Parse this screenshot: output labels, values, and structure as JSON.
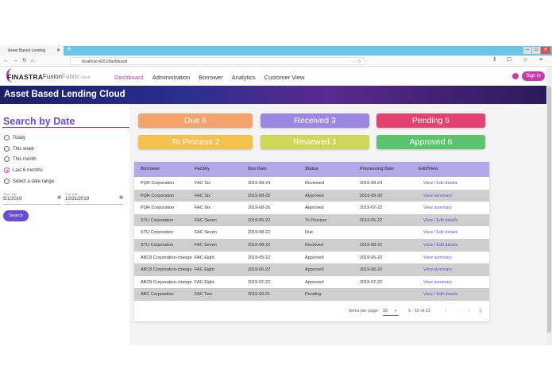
{
  "browser": {
    "tab_title": "Asset Based Lending",
    "url": "localhost:4201/dashboard"
  },
  "nav": {
    "brand": "FINASTRA",
    "product_a": "Fusion",
    "product_b": "Fabric",
    "product_c": ".cloud",
    "items": [
      "Dashboard",
      "Administration",
      "Borrower",
      "Analytics",
      "Customer View"
    ],
    "active": "Dashboard",
    "sign_in": "Sign in"
  },
  "banner": {
    "title": "Asset Based Lending Cloud"
  },
  "search": {
    "title": "Search by Date",
    "options": [
      "Today",
      "This week",
      "This month",
      "Last 6 months",
      "Select a date range"
    ],
    "selected": "Last 6 months",
    "start_label": "Start date",
    "start_value": "5/1/2019",
    "end_label": "End date",
    "end_value": "10/31/2019",
    "button": "Search"
  },
  "cards": [
    {
      "label": "Due 6",
      "color": "#f6a26c"
    },
    {
      "label": "Received 3",
      "color": "#9b87e3"
    },
    {
      "label": "Pending 5",
      "color": "#e5416f"
    },
    {
      "label": "To Process 2",
      "color": "#f2c14e"
    },
    {
      "label": "Reviewed 1",
      "color": "#cdd85a"
    },
    {
      "label": "Approved 6",
      "color": "#5cc46f"
    }
  ],
  "table": {
    "headers": [
      "Borrower",
      "Facility",
      "Due Date",
      "Status",
      "Processing Date",
      "Edit/View"
    ],
    "rows": [
      [
        "PQR Corporation",
        "FAC Six",
        "2019-08-24",
        "Reviewed",
        "2019-08-24",
        "View / Edit details"
      ],
      [
        "PQR Corporation",
        "FAC Six",
        "2019-08-25",
        "Approved",
        "2019-08-30",
        "View summary"
      ],
      [
        "PQR Corporation",
        "FAC Six",
        "2019-08-26",
        "Approved",
        "2019-07-22",
        "View summary"
      ],
      [
        "STU Corporation",
        "FAC Seven",
        "2019-05-22",
        "To Process",
        "2019-05-22",
        "View / Edit details"
      ],
      [
        "STU Corporation",
        "FAC Seven",
        "2019-08-22",
        "Due",
        "",
        "View / Edit details"
      ],
      [
        "STU Corporation",
        "FAC Seven",
        "2019-08-22",
        "Received",
        "2019-08-22",
        "View / Edit details"
      ],
      [
        "ABC8 Corporation-change",
        "FAC Eight",
        "2019-05-22",
        "Approved",
        "2019-05-22",
        "View summary"
      ],
      [
        "ABC8 Corporation-change",
        "FAC Eight",
        "2019-06-22",
        "Approved",
        "2019-06-22",
        "View summary"
      ],
      [
        "ABC8 Corporation-change",
        "FAC Eight",
        "2019-07-22",
        "Approved",
        "2019-07-22",
        "View summary"
      ],
      [
        "ABC Corporation",
        "FAC Two",
        "2019-09-01",
        "Pending",
        "",
        "View / Edit details"
      ]
    ]
  },
  "pager": {
    "items_per_page_label": "Items per page:",
    "items_per_page": "10",
    "range": "1 - 10 of 23"
  }
}
